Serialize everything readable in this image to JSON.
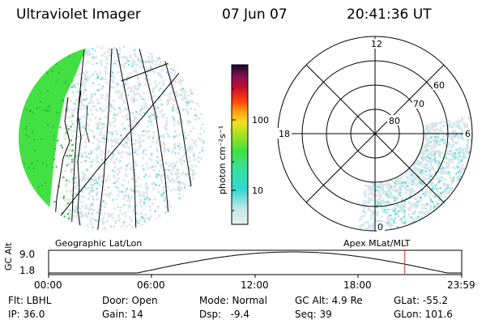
{
  "header": {
    "instrument": "Ultraviolet Imager",
    "date": "07 Jun 07",
    "time": "20:41:36 UT"
  },
  "left_panel": {
    "caption": "Geographic Lat/Lon"
  },
  "right_panel": {
    "caption": "Apex MLat/MLT",
    "mlt_labels": [
      "12",
      "18",
      "6",
      "0"
    ],
    "mlat_labels": [
      "60",
      "70",
      "80"
    ]
  },
  "colorbar": {
    "unit_label": "photon cm⁻²s⁻¹",
    "ticks": [
      "100",
      "10"
    ]
  },
  "altitude_plot": {
    "ylabel": "GC Alt",
    "yticks": [
      "9.0",
      "1.8"
    ],
    "xticks": [
      "00:00",
      "06:00",
      "12:00",
      "18:00",
      "23:59"
    ],
    "marker_color": "#c83030",
    "current_time_fraction": 0.8622
  },
  "footer": {
    "filter": "Flt: LBHL",
    "ip": "IP: 36.0",
    "door": "Door: Open",
    "gain": "Gain: 14",
    "mode": "Mode: Normal",
    "dsp": "Dsp:   -9.4",
    "gc_alt": "GC Alt: 4.9 Re",
    "seq": "Seq: 39",
    "glat": "GLat: -55.2",
    "glon": "GLon: 101.6"
  },
  "colors": {
    "dayglow_green": "#33dd33",
    "aurora_cyan": "#40d8e0",
    "haze_grey": "#dde3e3"
  }
}
